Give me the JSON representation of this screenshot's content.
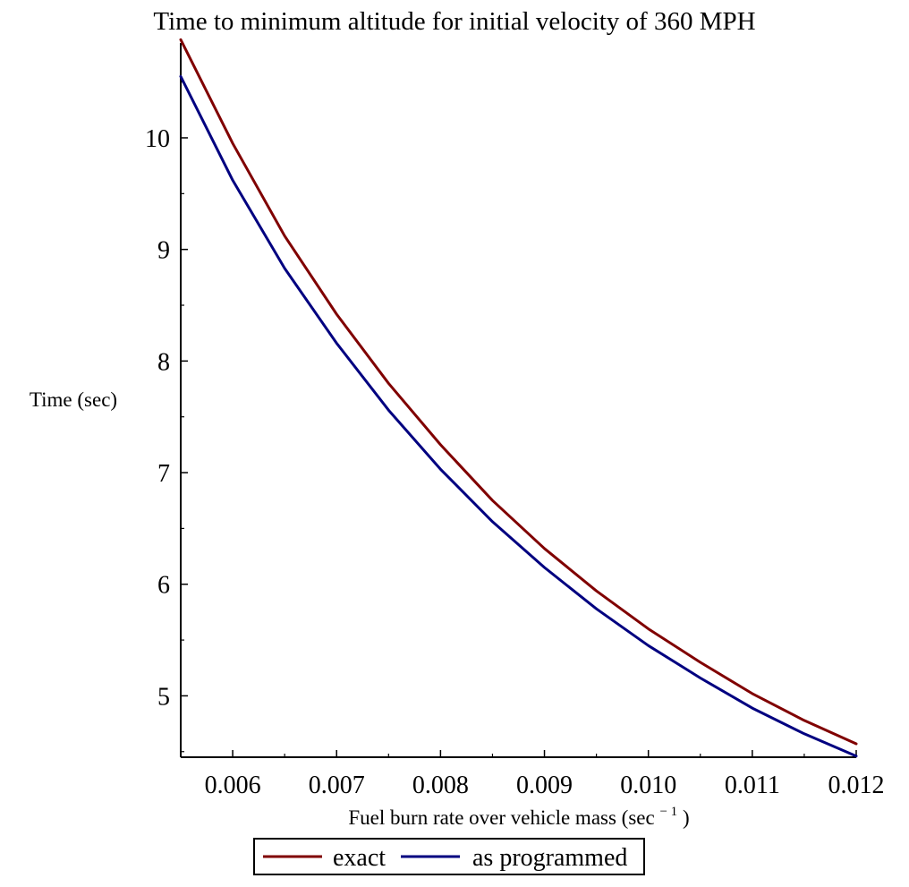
{
  "chart_data": {
    "type": "line",
    "title": "Time to minimum altitude for initial velocity of 360 MPH",
    "xlabel": "Fuel burn rate over vehicle mass (sec",
    "xlabel_exponent": "− 1",
    "xlabel_close": ")",
    "ylabel": "Time (sec)",
    "xlim": [
      0.0055,
      0.012
    ],
    "ylim": [
      4.45,
      10.85
    ],
    "x_ticks": [
      0.006,
      0.007,
      0.008,
      0.009,
      0.01,
      0.011,
      0.012
    ],
    "x_tick_labels": [
      "0.006",
      "0.007",
      "0.008",
      "0.009",
      "0.010",
      "0.011",
      "0.012"
    ],
    "y_ticks": [
      5,
      6,
      7,
      8,
      9,
      10
    ],
    "y_tick_labels": [
      "5",
      "6",
      "7",
      "8",
      "9",
      "10"
    ],
    "grid": false,
    "legend_position": "bottom-center",
    "series": [
      {
        "name": "exact",
        "color": "#800000",
        "x": [
          0.0055,
          0.006,
          0.0065,
          0.007,
          0.0075,
          0.008,
          0.0085,
          0.009,
          0.0095,
          0.01,
          0.0105,
          0.011,
          0.0115,
          0.012
        ],
        "y": [
          10.88,
          9.95,
          9.12,
          8.42,
          7.8,
          7.25,
          6.75,
          6.32,
          5.94,
          5.6,
          5.3,
          5.02,
          4.78,
          4.57
        ]
      },
      {
        "name": "as programmed",
        "color": "#000080",
        "x": [
          0.0055,
          0.006,
          0.0065,
          0.007,
          0.0075,
          0.008,
          0.0085,
          0.009,
          0.0095,
          0.01,
          0.0105,
          0.011,
          0.0115,
          0.012
        ],
        "y": [
          10.55,
          9.62,
          8.83,
          8.16,
          7.56,
          7.03,
          6.56,
          6.15,
          5.78,
          5.45,
          5.16,
          4.89,
          4.66,
          4.46
        ]
      }
    ]
  }
}
